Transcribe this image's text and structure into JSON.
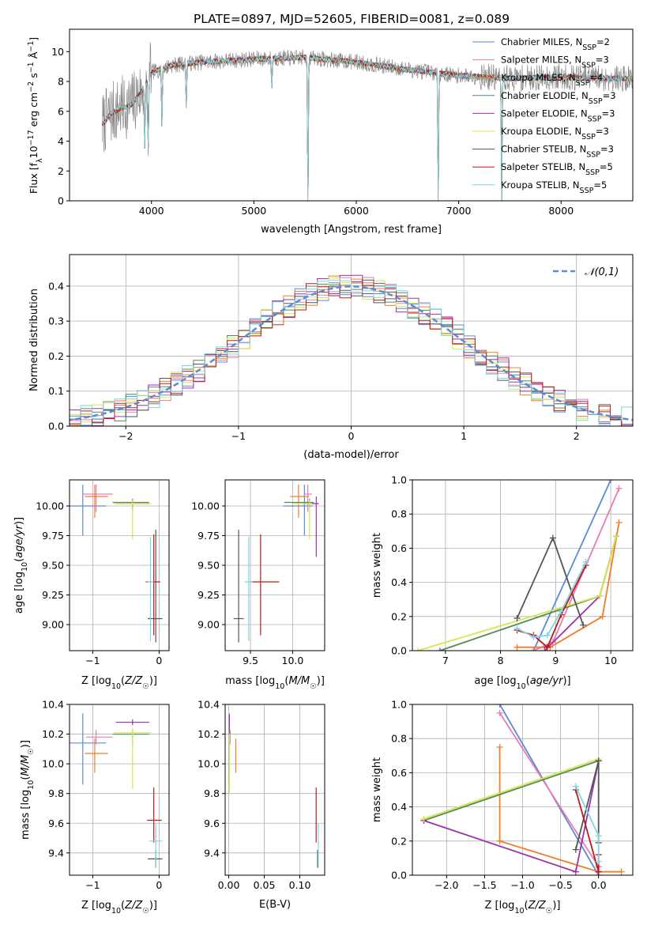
{
  "figure_title": "PLATE=0897, MJD=52605, FIBERID=0081, z=0.089",
  "colors": {
    "Chabrier MILES": "#5b8ad6",
    "Salpeter MILES": "#e87cb5",
    "Kroupa MILES": "#f07d2a",
    "Chabrier ELODIE": "#4f8a5c",
    "Salpeter ELODIE": "#a030b0",
    "Kroupa ELODIE": "#d4e84a",
    "Chabrier STELIB": "#555555",
    "Salpeter STELIB": "#c01818",
    "Kroupa STELIB": "#7fd6e0",
    "gauss": "#5b8ad6",
    "grid": "#b0b0b0"
  },
  "chart_data": [
    {
      "id": "spectrum",
      "type": "line",
      "title": "PLATE=0897, MJD=52605, FIBERID=0081, z=0.089",
      "xlabel": "wavelength [Angstrom, rest frame]",
      "ylabel_main": "Flux [f",
      "ylabel_sub": "λ",
      "ylabel_rest": "10",
      "ylabel_exp": "−17",
      "ylabel_tail": " erg cm",
      "xlim": [
        3200,
        8700
      ],
      "ylim": [
        0,
        11.5
      ],
      "xticks": [
        4000,
        5000,
        6000,
        7000,
        8000
      ],
      "yticks": [
        0,
        2,
        4,
        6,
        8,
        10
      ],
      "grid": false,
      "legend_position": "top-right",
      "legend": [
        {
          "name": "Chabrier MILES, N",
          "sub": "SSP",
          "val": "=2"
        },
        {
          "name": "Salpeter MILES, N",
          "sub": "SSP",
          "val": "=3"
        },
        {
          "name": "Kroupa MILES, N",
          "sub": "SSP",
          "val": "=4"
        },
        {
          "name": "Chabrier ELODIE, N",
          "sub": "SSP",
          "val": "=3"
        },
        {
          "name": "Salpeter ELODIE, N",
          "sub": "SSP",
          "val": "=3"
        },
        {
          "name": "Kroupa ELODIE, N",
          "sub": "SSP",
          "val": "=3"
        },
        {
          "name": "Chabrier STELIB, N",
          "sub": "SSP",
          "val": "=3"
        },
        {
          "name": "Salpeter STELIB, N",
          "sub": "SSP",
          "val": "=5"
        },
        {
          "name": "Kroupa STELIB, N",
          "sub": "SSP",
          "val": "=5"
        }
      ],
      "continuum": [
        [
          3520,
          5.1
        ],
        [
          3600,
          5.8
        ],
        [
          3700,
          6.2
        ],
        [
          3800,
          6.4
        ],
        [
          3900,
          7.3
        ],
        [
          4000,
          8.6
        ],
        [
          4200,
          9.1
        ],
        [
          4500,
          9.3
        ],
        [
          5000,
          9.5
        ],
        [
          5500,
          9.6
        ],
        [
          6000,
          9.3
        ],
        [
          6500,
          8.8
        ],
        [
          7000,
          8.4
        ],
        [
          7500,
          8.2
        ],
        [
          8000,
          8.3
        ],
        [
          8500,
          8.2
        ],
        [
          8700,
          8.2
        ]
      ],
      "absorption": [
        [
          3934,
          3.5
        ],
        [
          3968,
          3.0
        ],
        [
          4102,
          5.0
        ],
        [
          4340,
          6.2
        ],
        [
          5175,
          7.5
        ],
        [
          5528,
          0.0
        ],
        [
          6800,
          0.0
        ],
        [
          7420,
          0.0
        ]
      ]
    },
    {
      "id": "residuals",
      "type": "bar",
      "xlabel": "(data-model)/error",
      "ylabel": "Normed distribution",
      "xlim": [
        -2.5,
        2.5
      ],
      "ylim": [
        0,
        0.49
      ],
      "xticks": [
        -2,
        -1,
        0,
        1,
        2
      ],
      "yticks": [
        0.0,
        0.1,
        0.2,
        0.3,
        0.4
      ],
      "grid": true,
      "legend_position": "top-right",
      "legend_label": "𝒩(0,1)",
      "bin_width": 0.1,
      "model_fit": "normal(0,1)"
    },
    {
      "id": "age_vs_Z",
      "type": "scatter",
      "xlabel": "Z [log",
      "ylabel": "age  [log",
      "xlim": [
        -1.35,
        0.15
      ],
      "ylim": [
        8.78,
        10.22
      ],
      "xticks": [
        -1,
        0
      ],
      "yticks": [
        9.0,
        9.25,
        9.5,
        9.75,
        10.0
      ],
      "grid": true,
      "points": [
        {
          "model": "Chabrier MILES",
          "x": -1.15,
          "xlo": 0.2,
          "xhi": 0.35,
          "y": 10.0,
          "ylo": 0.25,
          "yhi": 0.18
        },
        {
          "model": "Salpeter MILES",
          "x": -0.95,
          "xlo": 0.2,
          "xhi": 0.25,
          "y": 10.1,
          "ylo": 0.15,
          "yhi": 0.08
        },
        {
          "model": "Kroupa MILES",
          "x": -0.97,
          "xlo": 0.15,
          "xhi": 0.2,
          "y": 10.08,
          "ylo": 0.18,
          "yhi": 0.1
        },
        {
          "model": "Chabrier ELODIE",
          "x": -0.4,
          "xlo": 0.3,
          "xhi": 0.25,
          "y": 10.03,
          "ylo": 0.05,
          "yhi": 0.03
        },
        {
          "model": "Salpeter ELODIE",
          "x": -0.4,
          "xlo": 0.25,
          "xhi": 0.25,
          "y": 10.02,
          "ylo": 0.05,
          "yhi": 0.03
        },
        {
          "model": "Kroupa ELODIE",
          "x": -0.4,
          "xlo": 0.28,
          "xhi": 0.28,
          "y": 10.02,
          "ylo": 0.3,
          "yhi": 0.03
        },
        {
          "model": "Chabrier STELIB",
          "x": -0.05,
          "xlo": 0.12,
          "xhi": 0.1,
          "y": 9.05,
          "ylo": 0.2,
          "yhi": 0.75
        },
        {
          "model": "Salpeter STELIB",
          "x": -0.08,
          "xlo": 0.12,
          "xhi": 0.1,
          "y": 9.36,
          "ylo": 0.45,
          "yhi": 0.4
        },
        {
          "model": "Kroupa STELIB",
          "x": -0.13,
          "xlo": 0.05,
          "xhi": 0.05,
          "y": 9.36,
          "ylo": 0.5,
          "yhi": 0.38
        }
      ]
    },
    {
      "id": "age_vs_mass",
      "type": "scatter",
      "xlabel": "mass [log",
      "xlim": [
        9.2,
        10.38
      ],
      "ylim": [
        8.78,
        10.22
      ],
      "xticks": [
        9.5,
        10.0
      ],
      "yticks": [
        9.0,
        9.25,
        9.5,
        9.75,
        10.0
      ],
      "grid": true,
      "points": [
        {
          "model": "Chabrier MILES",
          "x": 10.14,
          "xlo": 0.25,
          "xhi": 0.1,
          "y": 10.0,
          "ylo": 0.25,
          "yhi": 0.18
        },
        {
          "model": "Salpeter MILES",
          "x": 10.18,
          "xlo": 0.05,
          "xhi": 0.05,
          "y": 10.1,
          "ylo": 0.15,
          "yhi": 0.08
        },
        {
          "model": "Kroupa MILES",
          "x": 10.07,
          "xlo": 0.1,
          "xhi": 0.12,
          "y": 10.08,
          "ylo": 0.18,
          "yhi": 0.1
        },
        {
          "model": "Chabrier ELODIE",
          "x": 10.2,
          "xlo": 0.3,
          "xhi": 0.05,
          "y": 10.03,
          "ylo": 0.05,
          "yhi": 0.03
        },
        {
          "model": "Salpeter ELODIE",
          "x": 10.28,
          "xlo": 0.15,
          "xhi": 0.03,
          "y": 10.02,
          "ylo": 0.45,
          "yhi": 0.06
        },
        {
          "model": "Kroupa ELODIE",
          "x": 10.2,
          "xlo": 0.2,
          "xhi": 0.03,
          "y": 10.02,
          "ylo": 0.3,
          "yhi": 0.03
        },
        {
          "model": "Chabrier STELIB",
          "x": 9.36,
          "xlo": 0.06,
          "xhi": 0.06,
          "y": 9.05,
          "ylo": 0.2,
          "yhi": 0.75
        },
        {
          "model": "Salpeter STELIB",
          "x": 9.62,
          "xlo": 0.12,
          "xhi": 0.22,
          "y": 9.36,
          "ylo": 0.45,
          "yhi": 0.4
        },
        {
          "model": "Kroupa STELIB",
          "x": 9.48,
          "xlo": 0.05,
          "xhi": 0.05,
          "y": 9.36,
          "ylo": 0.5,
          "yhi": 0.38
        }
      ]
    },
    {
      "id": "massweight_vs_age",
      "type": "line",
      "xlabel": "age  [log",
      "ylabel": "mass weight",
      "xlim": [
        6.4,
        10.4
      ],
      "ylim": [
        0,
        1.0
      ],
      "xticks": [
        7,
        8,
        9,
        10
      ],
      "yticks": [
        0.0,
        0.2,
        0.4,
        0.6,
        0.8,
        1.0
      ],
      "grid": true,
      "series": [
        {
          "model": "Chabrier MILES",
          "points": [
            [
              8.6,
              0.0
            ],
            [
              10.0,
              1.0
            ]
          ]
        },
        {
          "model": "Salpeter MILES",
          "points": [
            [
              8.6,
              0.0
            ],
            [
              8.95,
              0.05
            ],
            [
              10.15,
              0.95
            ]
          ]
        },
        {
          "model": "Kroupa MILES",
          "points": [
            [
              8.3,
              0.02
            ],
            [
              8.9,
              0.02
            ],
            [
              9.85,
              0.2
            ],
            [
              10.15,
              0.75
            ]
          ]
        },
        {
          "model": "Chabrier ELODIE",
          "points": [
            [
              6.9,
              0.0
            ],
            [
              9.8,
              0.32
            ],
            [
              10.1,
              0.67
            ]
          ]
        },
        {
          "model": "Salpeter ELODIE",
          "points": [
            [
              8.8,
              0.0
            ],
            [
              9.8,
              0.32
            ],
            [
              10.1,
              0.67
            ]
          ]
        },
        {
          "model": "Kroupa ELODIE",
          "points": [
            [
              6.5,
              0.0
            ],
            [
              9.8,
              0.32
            ],
            [
              10.1,
              0.67
            ]
          ]
        },
        {
          "model": "Chabrier STELIB",
          "points": [
            [
              8.3,
              0.19
            ],
            [
              8.95,
              0.66
            ],
            [
              9.5,
              0.15
            ]
          ]
        },
        {
          "model": "Salpeter STELIB",
          "points": [
            [
              8.3,
              0.12
            ],
            [
              8.6,
              0.09
            ],
            [
              8.85,
              0.02
            ],
            [
              9.1,
              0.21
            ],
            [
              9.55,
              0.5
            ]
          ]
        },
        {
          "model": "Kroupa STELIB",
          "points": [
            [
              8.3,
              0.13
            ],
            [
              8.6,
              0.08
            ],
            [
              8.85,
              0.09
            ],
            [
              9.1,
              0.23
            ],
            [
              9.55,
              0.52
            ]
          ]
        }
      ]
    },
    {
      "id": "mass_vs_Z",
      "type": "scatter",
      "xlabel": "Z [log",
      "ylabel": "mass [log",
      "xlim": [
        -1.35,
        0.15
      ],
      "ylim": [
        9.25,
        10.4
      ],
      "xticks": [
        -1,
        0
      ],
      "yticks": [
        9.4,
        9.6,
        9.8,
        10.0,
        10.2,
        10.4
      ],
      "grid": true,
      "points": [
        {
          "model": "Chabrier MILES",
          "x": -1.15,
          "xlo": 0.2,
          "xhi": 0.35,
          "y": 10.14,
          "ylo": 0.28,
          "yhi": 0.2
        },
        {
          "model": "Salpeter MILES",
          "x": -0.95,
          "xlo": 0.15,
          "xhi": 0.25,
          "y": 10.18,
          "ylo": 0.05,
          "yhi": 0.05
        },
        {
          "model": "Kroupa MILES",
          "x": -0.97,
          "xlo": 0.15,
          "xhi": 0.2,
          "y": 10.07,
          "ylo": 0.13,
          "yhi": 0.1
        },
        {
          "model": "Chabrier ELODIE",
          "x": -0.4,
          "xlo": 0.3,
          "xhi": 0.25,
          "y": 10.2,
          "ylo": 0.05,
          "yhi": 0.03
        },
        {
          "model": "Salpeter ELODIE",
          "x": -0.4,
          "xlo": 0.25,
          "xhi": 0.25,
          "y": 10.28,
          "ylo": 0.02,
          "yhi": 0.02
        },
        {
          "model": "Kroupa ELODIE",
          "x": -0.4,
          "xlo": 0.28,
          "xhi": 0.28,
          "y": 10.21,
          "ylo": 0.38,
          "yhi": 0.03
        },
        {
          "model": "Chabrier STELIB",
          "x": -0.05,
          "xlo": 0.12,
          "xhi": 0.1,
          "y": 9.36,
          "ylo": 0.06,
          "yhi": 0.06
        },
        {
          "model": "Salpeter STELIB",
          "x": -0.08,
          "xlo": 0.1,
          "xhi": 0.12,
          "y": 9.62,
          "ylo": 0.15,
          "yhi": 0.22
        },
        {
          "model": "Kroupa STELIB",
          "x": -0.05,
          "xlo": 0.1,
          "xhi": 0.1,
          "y": 9.48,
          "ylo": 0.18,
          "yhi": 0.12
        }
      ]
    },
    {
      "id": "mass_vs_EBV",
      "type": "scatter",
      "xlabel": "E(B-V)",
      "xlim": [
        -0.005,
        0.135
      ],
      "ylim": [
        9.25,
        10.4
      ],
      "xticks": [
        0.0,
        0.05,
        0.1
      ],
      "yticks": [
        9.4,
        9.6,
        9.8,
        10.0,
        10.2,
        10.4
      ],
      "grid": true,
      "points": [
        {
          "model": "Chabrier MILES",
          "x": 0.001,
          "y": 10.14,
          "ylo": 0.28,
          "yhi": 0.2
        },
        {
          "model": "Salpeter MILES",
          "x": 0.002,
          "y": 10.18,
          "ylo": 0.05,
          "yhi": 0.05
        },
        {
          "model": "Kroupa MILES",
          "x": 0.01,
          "y": 10.07,
          "ylo": 0.13,
          "yhi": 0.1
        },
        {
          "model": "Chabrier ELODIE",
          "x": 0.001,
          "y": 10.2,
          "ylo": 0.05,
          "yhi": 0.03
        },
        {
          "model": "Salpeter ELODIE",
          "x": 0.001,
          "y": 10.28,
          "ylo": 0.05,
          "yhi": 0.05
        },
        {
          "model": "Kroupa ELODIE",
          "x": 0.001,
          "y": 10.0,
          "ylo": 0.2,
          "yhi": 0.2
        },
        {
          "model": "Chabrier STELIB",
          "x": 0.125,
          "y": 9.36,
          "ylo": 0.06,
          "yhi": 0.06
        },
        {
          "model": "Salpeter STELIB",
          "x": 0.123,
          "y": 9.62,
          "ylo": 0.15,
          "yhi": 0.22
        },
        {
          "model": "Kroupa STELIB",
          "x": 0.126,
          "y": 9.48,
          "ylo": 0.18,
          "yhi": 0.12
        }
      ]
    },
    {
      "id": "massweight_vs_Z",
      "type": "line",
      "xlabel": "Z [log",
      "ylabel": "mass weight",
      "xlim": [
        -2.45,
        0.45
      ],
      "ylim": [
        0,
        1.0
      ],
      "xticks": [
        -2.0,
        -1.5,
        -1.0,
        -0.5,
        0.0
      ],
      "yticks": [
        0.0,
        0.2,
        0.4,
        0.6,
        0.8,
        1.0
      ],
      "grid": true,
      "series": [
        {
          "model": "Chabrier MILES",
          "points": [
            [
              -1.3,
              1.0
            ],
            [
              0.0,
              0.0
            ]
          ]
        },
        {
          "model": "Salpeter MILES",
          "points": [
            [
              -1.3,
              0.95
            ],
            [
              0.0,
              0.05
            ],
            [
              0.0,
              0.0
            ]
          ]
        },
        {
          "model": "Kroupa MILES",
          "points": [
            [
              -1.3,
              0.75
            ],
            [
              -1.3,
              0.2
            ],
            [
              0.0,
              0.02
            ],
            [
              0.3,
              0.02
            ]
          ]
        },
        {
          "model": "Chabrier ELODIE",
          "points": [
            [
              -2.3,
              0.32
            ],
            [
              0.0,
              0.67
            ]
          ]
        },
        {
          "model": "Salpeter ELODIE",
          "points": [
            [
              -2.3,
              0.32
            ],
            [
              -0.3,
              0.02
            ],
            [
              0.0,
              0.67
            ]
          ]
        },
        {
          "model": "Kroupa ELODIE",
          "points": [
            [
              -2.3,
              0.33
            ],
            [
              0.0,
              0.68
            ]
          ]
        },
        {
          "model": "Chabrier STELIB",
          "points": [
            [
              -0.3,
              0.15
            ],
            [
              0.0,
              0.67
            ],
            [
              0.0,
              0.19
            ]
          ]
        },
        {
          "model": "Salpeter STELIB",
          "points": [
            [
              -0.3,
              0.5
            ],
            [
              0.0,
              0.02
            ],
            [
              0.0,
              0.12
            ]
          ]
        },
        {
          "model": "Kroupa STELIB",
          "points": [
            [
              -0.3,
              0.52
            ],
            [
              0.0,
              0.23
            ],
            [
              0.0,
              0.08
            ]
          ]
        }
      ]
    }
  ]
}
